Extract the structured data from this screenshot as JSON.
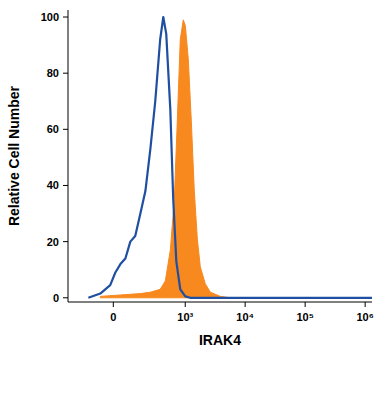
{
  "chart_data": {
    "type": "histogram_overlay",
    "x_label": "IRAK4",
    "y_label": "Relative Cell Number",
    "xlim": [
      -350,
      1300000
    ],
    "ylim": [
      -1.5,
      102.5
    ],
    "xticks": [
      0,
      {
        "value": 1000,
        "label": "10³"
      },
      {
        "value": 10000,
        "label": "10⁴"
      },
      {
        "value": 100000,
        "label": "10⁵"
      },
      {
        "value": 1000000,
        "label": "10⁶"
      }
    ],
    "yticks": [
      0,
      20,
      40,
      60,
      80,
      100
    ],
    "grid": false,
    "series": [
      {
        "type": "line",
        "color": "#1f4fa0",
        "x": [
          -141,
          -66,
          -15,
          10,
          35,
          61,
          89,
          120,
          157,
          199,
          248,
          305,
          373,
          423,
          476,
          559,
          627,
          707,
          825,
          1002,
          1215,
          2500,
          10000,
          100000,
          1300000
        ],
        "values": [
          0,
          1.5,
          4.5,
          9,
          12,
          14,
          20,
          22,
          30,
          38,
          53,
          70,
          92,
          100,
          94,
          67,
          35,
          13,
          3,
          0.5,
          0,
          0,
          0,
          0,
          0
        ]
      },
      {
        "type": "area",
        "color": "#f7891f",
        "x": [
          -66,
          35,
          157,
          248,
          373,
          459,
          559,
          654,
          735,
          825,
          927,
          1002,
          1125,
          1264,
          1418,
          1593,
          1787,
          2166,
          2625,
          3855,
          5660
        ],
        "values": [
          0.5,
          1,
          1.5,
          2,
          3,
          6,
          17,
          35,
          63,
          92,
          99,
          97,
          85,
          63,
          38,
          21,
          11,
          5,
          2,
          0.5,
          0
        ]
      }
    ]
  }
}
